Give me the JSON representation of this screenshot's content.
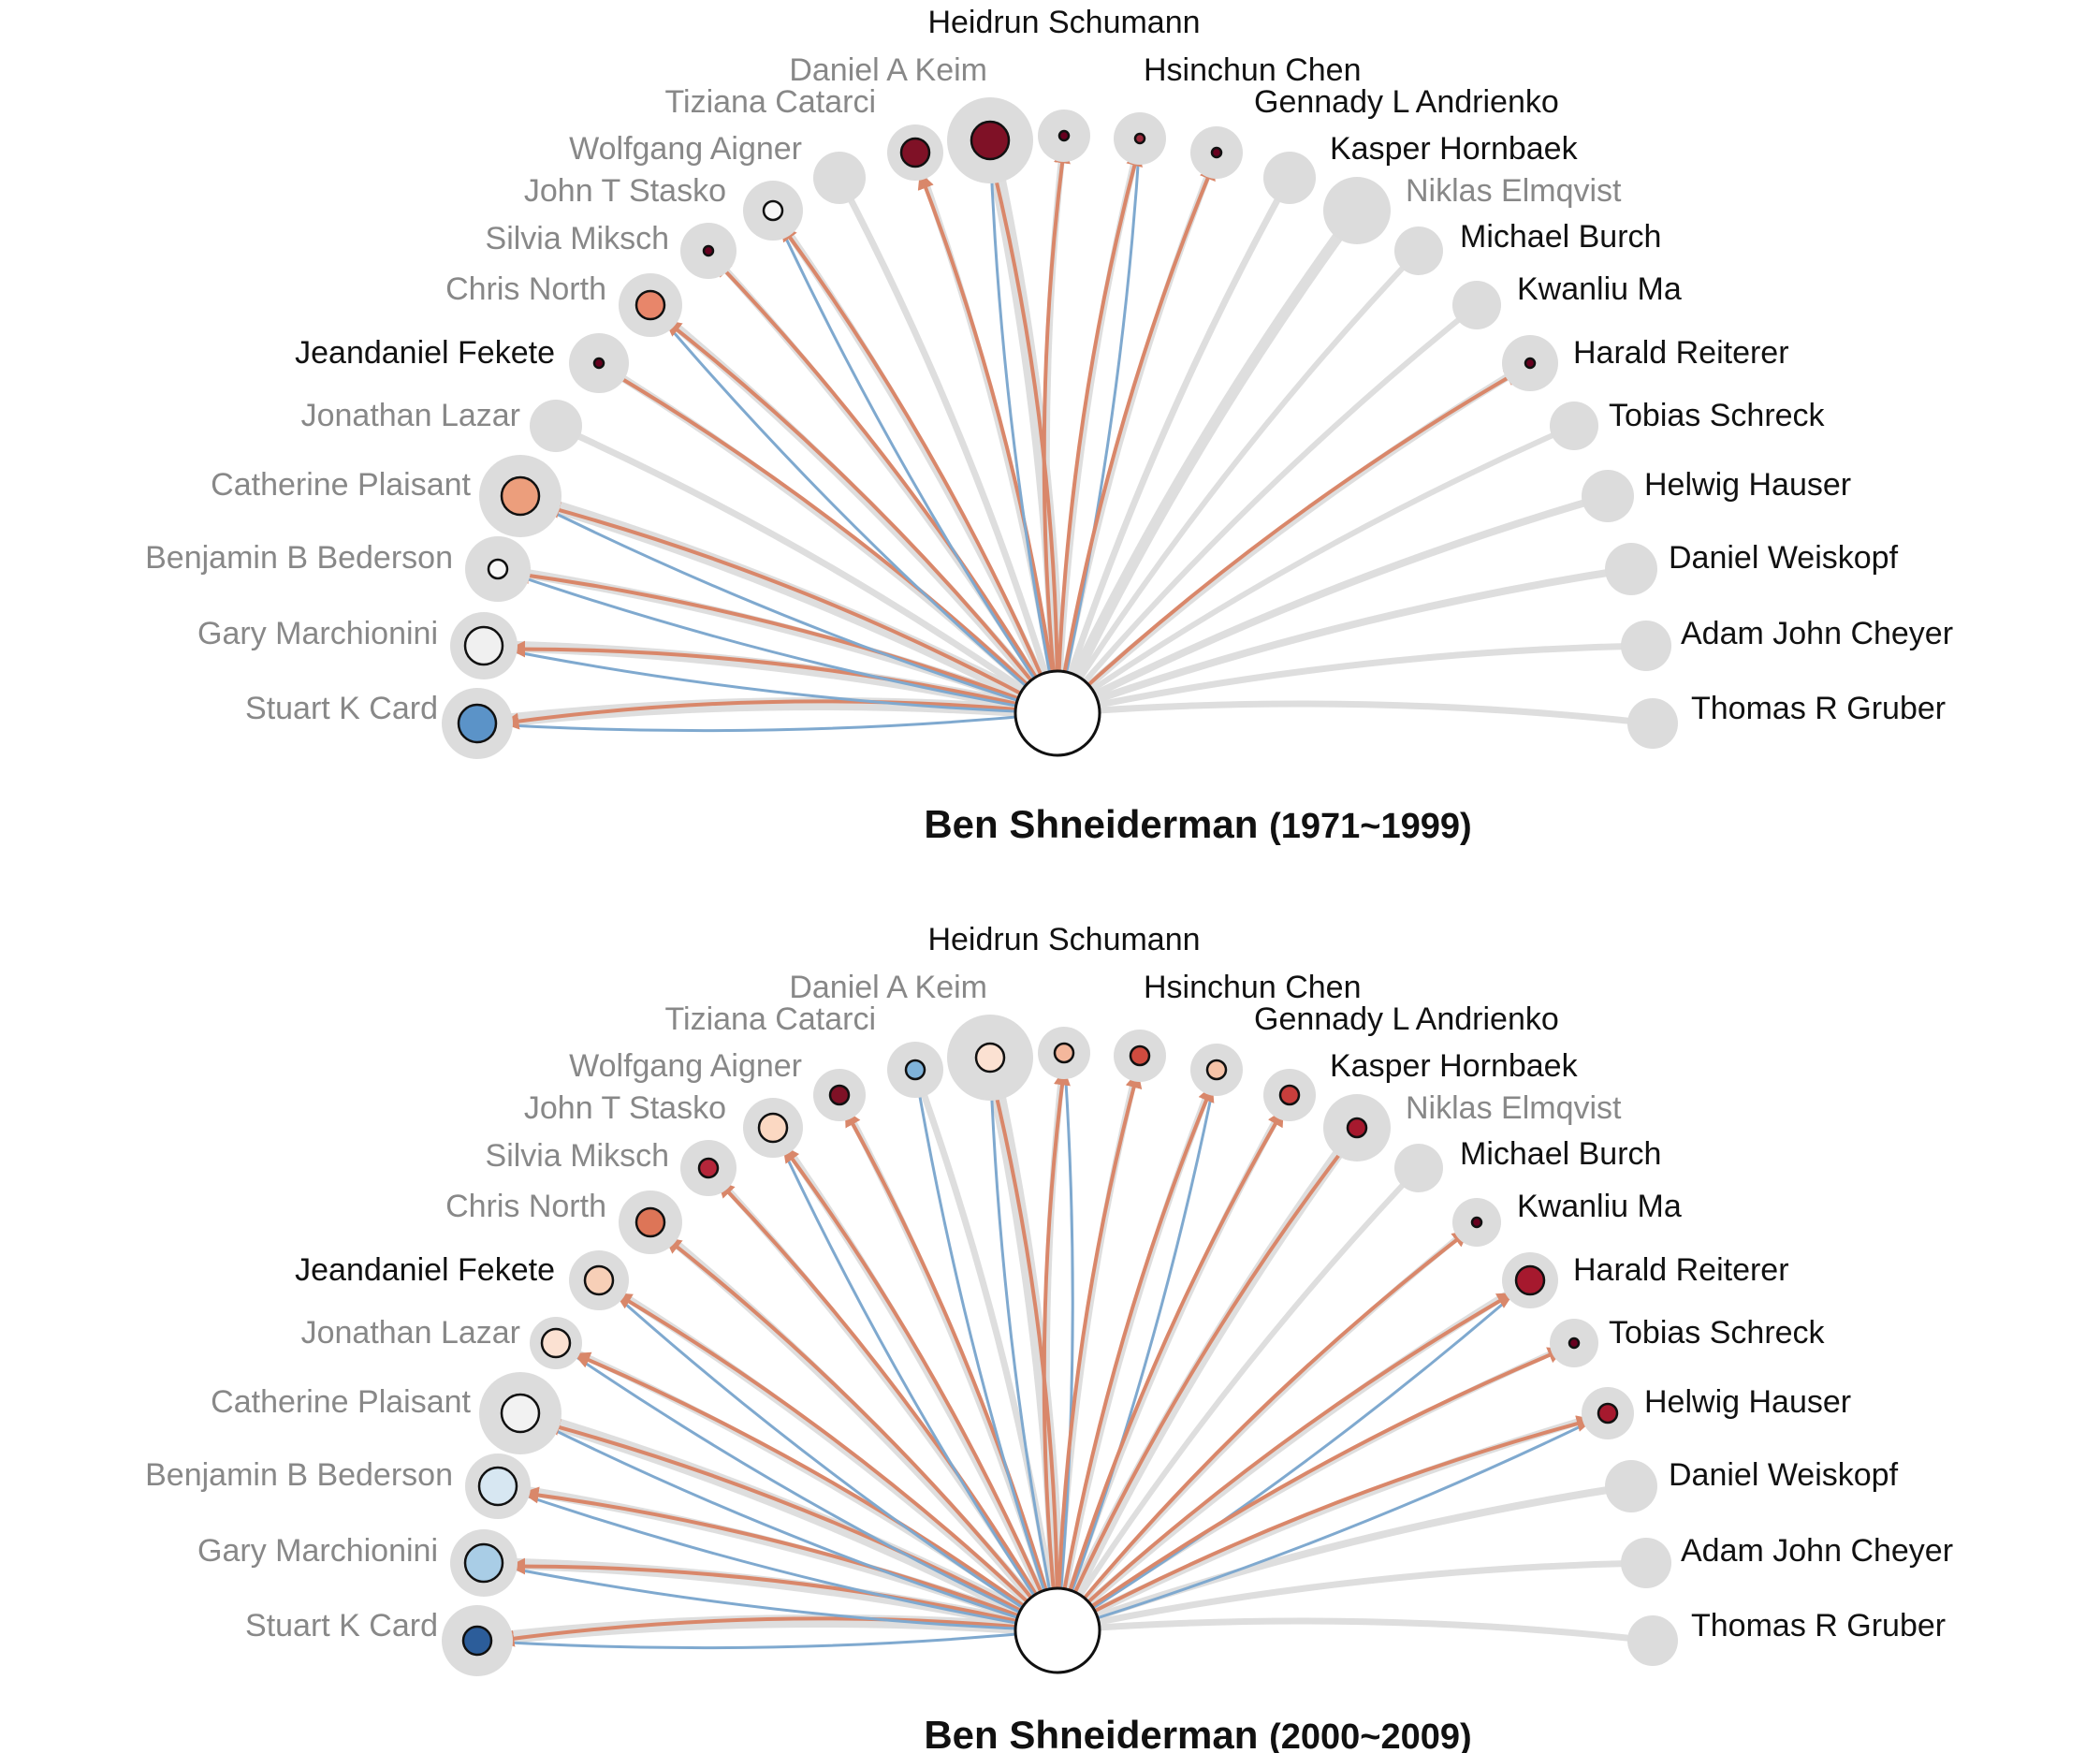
{
  "colors": {
    "red_edge": "#d9876a",
    "blue_edge": "#7fa9cf",
    "grey_edge": "#dedede",
    "halo": "#dcdcdc",
    "label_dark": "#111111",
    "label_light": "#888888"
  },
  "authors": [
    {
      "name": "Stuart K Card",
      "side": "left",
      "tone": "light"
    },
    {
      "name": "Gary Marchionini",
      "side": "left",
      "tone": "light"
    },
    {
      "name": "Benjamin B Bederson",
      "side": "left",
      "tone": "light"
    },
    {
      "name": "Catherine Plaisant",
      "side": "left",
      "tone": "light"
    },
    {
      "name": "Jonathan Lazar",
      "side": "left",
      "tone": "light"
    },
    {
      "name": "Jeandaniel Fekete",
      "side": "left",
      "tone": "dark"
    },
    {
      "name": "Chris North",
      "side": "left",
      "tone": "light"
    },
    {
      "name": "Silvia Miksch",
      "side": "left",
      "tone": "light"
    },
    {
      "name": "John T Stasko",
      "side": "left",
      "tone": "light"
    },
    {
      "name": "Wolfgang Aigner",
      "side": "left",
      "tone": "light"
    },
    {
      "name": "Tiziana Catarci",
      "side": "left",
      "tone": "light"
    },
    {
      "name": "Daniel A Keim",
      "side": "left",
      "tone": "light"
    },
    {
      "name": "Heidrun Schumann",
      "side": "top",
      "tone": "dark"
    },
    {
      "name": "Hsinchun Chen",
      "side": "right",
      "tone": "dark"
    },
    {
      "name": "Gennady L Andrienko",
      "side": "right",
      "tone": "dark"
    },
    {
      "name": "Kasper Hornbaek",
      "side": "right",
      "tone": "dark"
    },
    {
      "name": "Niklas Elmqvist",
      "side": "right",
      "tone": "light"
    },
    {
      "name": "Michael Burch",
      "side": "right",
      "tone": "dark"
    },
    {
      "name": "Kwanliu Ma",
      "side": "right",
      "tone": "dark"
    },
    {
      "name": "Harald Reiterer",
      "side": "right",
      "tone": "dark"
    },
    {
      "name": "Tobias Schreck",
      "side": "right",
      "tone": "dark"
    },
    {
      "name": "Helwig Hauser",
      "side": "right",
      "tone": "dark"
    },
    {
      "name": "Daniel Weiskopf",
      "side": "right",
      "tone": "dark"
    },
    {
      "name": "Adam John Cheyer",
      "side": "right",
      "tone": "dark"
    },
    {
      "name": "Thomas R Gruber",
      "side": "right",
      "tone": "dark"
    }
  ],
  "panels": [
    {
      "id": "panel-1971-1999",
      "title_name": "Ben Shneiderman",
      "title_period": "(1971~1999)",
      "nodes": [
        {
          "active": true,
          "fill": "#5b93c8",
          "size": "large",
          "edges": [
            "blue",
            "red"
          ]
        },
        {
          "active": true,
          "fill": "#f0f0f0",
          "size": "large",
          "edges": [
            "blue",
            "red"
          ]
        },
        {
          "active": true,
          "fill": "#f7f7f7",
          "size": "small",
          "edges": [
            "blue",
            "red"
          ]
        },
        {
          "active": true,
          "fill": "#ec9e7c",
          "size": "large",
          "edges": [
            "blue",
            "red"
          ]
        },
        {
          "active": false,
          "fill": "",
          "size": "",
          "edges": []
        },
        {
          "active": true,
          "fill": "#67001f",
          "size": "tiny",
          "edges": [
            "red"
          ]
        },
        {
          "active": true,
          "fill": "#e8866a",
          "size": "medium",
          "edges": [
            "blue",
            "red"
          ]
        },
        {
          "active": true,
          "fill": "#67001f",
          "size": "tiny",
          "edges": [
            "red"
          ]
        },
        {
          "active": true,
          "fill": "#f7f7f7",
          "size": "small",
          "edges": [
            "blue",
            "red"
          ]
        },
        {
          "active": false,
          "fill": "",
          "size": "",
          "edges": []
        },
        {
          "active": true,
          "fill": "#7f1126",
          "size": "medium",
          "edges": [
            "red"
          ]
        },
        {
          "active": true,
          "fill": "#7f1126",
          "size": "large",
          "edges": [
            "blue",
            "red"
          ]
        },
        {
          "active": true,
          "fill": "#67001f",
          "size": "tiny",
          "edges": [
            "red"
          ]
        },
        {
          "active": true,
          "fill": "#9c2a3c",
          "size": "tiny",
          "edges": [
            "blue",
            "red"
          ]
        },
        {
          "active": true,
          "fill": "#67001f",
          "size": "tiny",
          "edges": [
            "red"
          ]
        },
        {
          "active": false,
          "fill": "",
          "size": "",
          "edges": []
        },
        {
          "active": false,
          "fill": "",
          "size": "",
          "edges": []
        },
        {
          "active": false,
          "fill": "",
          "size": "",
          "edges": []
        },
        {
          "active": false,
          "fill": "",
          "size": "",
          "edges": []
        },
        {
          "active": true,
          "fill": "#67001f",
          "size": "tiny",
          "edges": [
            "red"
          ]
        },
        {
          "active": false,
          "fill": "",
          "size": "",
          "edges": []
        },
        {
          "active": false,
          "fill": "",
          "size": "",
          "edges": []
        },
        {
          "active": false,
          "fill": "",
          "size": "",
          "edges": []
        },
        {
          "active": false,
          "fill": "",
          "size": "",
          "edges": []
        },
        {
          "active": false,
          "fill": "",
          "size": "",
          "edges": []
        }
      ]
    },
    {
      "id": "panel-2000-2009",
      "title_name": "Ben Shneiderman",
      "title_period": "(2000~2009)",
      "nodes": [
        {
          "active": true,
          "fill": "#2c5d9a",
          "size": "medium",
          "edges": [
            "blue",
            "red"
          ]
        },
        {
          "active": true,
          "fill": "#a9cde6",
          "size": "large",
          "edges": [
            "blue",
            "red"
          ]
        },
        {
          "active": true,
          "fill": "#d7e7f2",
          "size": "large",
          "edges": [
            "blue",
            "red"
          ]
        },
        {
          "active": true,
          "fill": "#f2f2f2",
          "size": "large",
          "edges": [
            "blue",
            "red"
          ]
        },
        {
          "active": true,
          "fill": "#fbe1d2",
          "size": "medium",
          "edges": [
            "blue",
            "red"
          ]
        },
        {
          "active": true,
          "fill": "#f7cfb7",
          "size": "medium",
          "edges": [
            "blue",
            "red"
          ]
        },
        {
          "active": true,
          "fill": "#dd7557",
          "size": "medium",
          "edges": [
            "red"
          ]
        },
        {
          "active": true,
          "fill": "#b5263a",
          "size": "small",
          "edges": [
            "red"
          ]
        },
        {
          "active": true,
          "fill": "#fbd8c2",
          "size": "medium",
          "edges": [
            "blue",
            "red"
          ]
        },
        {
          "active": true,
          "fill": "#7f1126",
          "size": "small",
          "edges": [
            "red"
          ]
        },
        {
          "active": true,
          "fill": "#7fb3da",
          "size": "small",
          "edges": [
            "blue"
          ]
        },
        {
          "active": true,
          "fill": "#fbe1d2",
          "size": "medium",
          "edges": [
            "blue",
            "red"
          ]
        },
        {
          "active": true,
          "fill": "#f4b79c",
          "size": "small",
          "edges": [
            "blue",
            "red"
          ]
        },
        {
          "active": true,
          "fill": "#cf4b3f",
          "size": "small",
          "edges": [
            "red"
          ]
        },
        {
          "active": true,
          "fill": "#f6c3a8",
          "size": "small",
          "edges": [
            "blue",
            "red"
          ]
        },
        {
          "active": true,
          "fill": "#c83e3c",
          "size": "small",
          "edges": [
            "red"
          ]
        },
        {
          "active": true,
          "fill": "#a6192e",
          "size": "small",
          "edges": [
            "red"
          ]
        },
        {
          "active": false,
          "fill": "",
          "size": "",
          "edges": []
        },
        {
          "active": true,
          "fill": "#67001f",
          "size": "tiny",
          "edges": [
            "red"
          ]
        },
        {
          "active": true,
          "fill": "#a6192e",
          "size": "medium",
          "edges": [
            "blue",
            "red"
          ]
        },
        {
          "active": true,
          "fill": "#67001f",
          "size": "tiny",
          "edges": [
            "red"
          ]
        },
        {
          "active": true,
          "fill": "#a6192e",
          "size": "small",
          "edges": [
            "blue",
            "red"
          ]
        },
        {
          "active": false,
          "fill": "",
          "size": "",
          "edges": []
        },
        {
          "active": false,
          "fill": "",
          "size": "",
          "edges": []
        },
        {
          "active": false,
          "fill": "",
          "size": "",
          "edges": []
        }
      ]
    }
  ]
}
